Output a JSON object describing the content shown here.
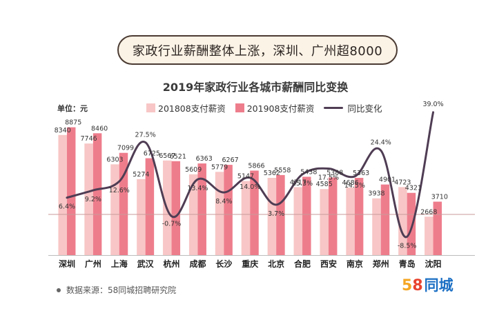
{
  "banner": "家政行业薪酬整体上涨，深圳、广州超8000",
  "source": "数据来源：58同城招聘研究院",
  "logo": {
    "digit1": "5",
    "digit2": "8",
    "text": "同城"
  },
  "colors": {
    "bar2018": "#f8c6c6",
    "bar2019": "#ee7d8c",
    "line": "#4f3d54",
    "baseline": "#c89a9a"
  },
  "chart_data": {
    "type": "bar",
    "title": "2019年家政行业各城市薪酬同比变换",
    "unit_label": "单位：元",
    "legend_position": "top",
    "grid": false,
    "categories": [
      "深圳",
      "广州",
      "上海",
      "武汉",
      "杭州",
      "成都",
      "长沙",
      "重庆",
      "北京",
      "合肥",
      "西安",
      "南京",
      "郑州",
      "青岛",
      "沈阳"
    ],
    "series": [
      {
        "name": "201808支付薪资",
        "type": "bar",
        "values": [
          8340,
          7746,
          6303,
          5274,
          6567,
          5609,
          5779,
          5147,
          5362,
          4717,
          4585,
          4686,
          3938,
          4723,
          2668
        ]
      },
      {
        "name": "201908支付薪资",
        "type": "bar",
        "values": [
          8875,
          8460,
          7099,
          6725,
          6521,
          6363,
          6267,
          5866,
          5558,
          5438,
          5388,
          5363,
          4901,
          4321,
          3710
        ]
      },
      {
        "name": "同比变化",
        "type": "line",
        "values": [
          6.4,
          9.2,
          12.6,
          27.5,
          -0.7,
          13.4,
          8.4,
          14.0,
          3.7,
          15.3,
          17.5,
          14.5,
          24.4,
          -8.5,
          39.0
        ],
        "labels": [
          "6.4%",
          "9.2%",
          "12.6%",
          "27.5%",
          "-0.7%",
          "13.4%",
          "8.4%",
          "14.0%",
          "3.7%",
          "15.3%",
          "17.5%",
          "14.5%",
          "24.4%",
          "-8.5%",
          "39.0%"
        ]
      }
    ]
  }
}
